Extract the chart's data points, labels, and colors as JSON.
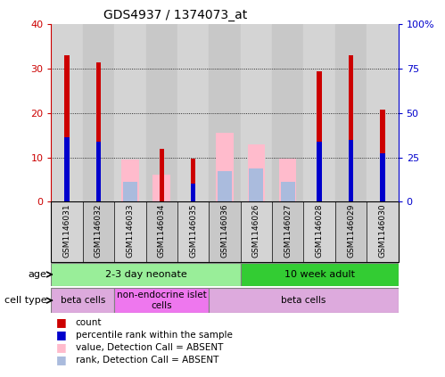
{
  "title": "GDS4937 / 1374073_at",
  "samples": [
    "GSM1146031",
    "GSM1146032",
    "GSM1146033",
    "GSM1146034",
    "GSM1146035",
    "GSM1146036",
    "GSM1146026",
    "GSM1146027",
    "GSM1146028",
    "GSM1146029",
    "GSM1146030"
  ],
  "red_bars": [
    33.0,
    31.5,
    0.0,
    12.0,
    9.8,
    0.0,
    0.0,
    0.0,
    29.5,
    33.0,
    20.8
  ],
  "blue_bars": [
    14.5,
    13.5,
    0.0,
    0.0,
    4.0,
    0.0,
    0.0,
    0.0,
    13.5,
    14.0,
    11.0
  ],
  "pink_bars": [
    0.0,
    0.0,
    9.5,
    6.0,
    0.0,
    15.5,
    13.0,
    9.8,
    0.0,
    0.0,
    0.0
  ],
  "lightblue_bars": [
    0.0,
    0.0,
    4.5,
    0.0,
    0.0,
    7.0,
    7.5,
    4.5,
    0.0,
    0.0,
    0.0
  ],
  "ylim_left": [
    0,
    40
  ],
  "ylim_right": [
    0,
    100
  ],
  "yticks_left": [
    0,
    10,
    20,
    30,
    40
  ],
  "ytick_labels_left": [
    "0",
    "10",
    "20",
    "30",
    "40"
  ],
  "yticks_right": [
    0,
    25,
    50,
    75,
    100
  ],
  "ytick_labels_right": [
    "0",
    "25",
    "50",
    "75",
    "100%"
  ],
  "age_groups": [
    {
      "label": "2-3 day neonate",
      "start": 0,
      "end": 6,
      "color": "#99ee99"
    },
    {
      "label": "10 week adult",
      "start": 6,
      "end": 11,
      "color": "#33cc33"
    }
  ],
  "cell_type_groups": [
    {
      "label": "beta cells",
      "start": 0,
      "end": 2,
      "color": "#ddaadd"
    },
    {
      "label": "non-endocrine islet\ncells",
      "start": 2,
      "end": 5,
      "color": "#ee77ee"
    },
    {
      "label": "beta cells",
      "start": 5,
      "end": 11,
      "color": "#ddaadd"
    }
  ],
  "red_color": "#cc0000",
  "blue_color": "#0000cc",
  "pink_color": "#ffbbcc",
  "lightblue_color": "#aabbdd",
  "left_tick_color": "#cc0000",
  "right_tick_color": "#0000cc",
  "col_bg_odd": "#d4d4d4",
  "col_bg_even": "#c8c8c8",
  "legend_items": [
    {
      "color": "#cc0000",
      "label": "count"
    },
    {
      "color": "#0000cc",
      "label": "percentile rank within the sample"
    },
    {
      "color": "#ffbbcc",
      "label": "value, Detection Call = ABSENT"
    },
    {
      "color": "#aabbdd",
      "label": "rank, Detection Call = ABSENT"
    }
  ]
}
